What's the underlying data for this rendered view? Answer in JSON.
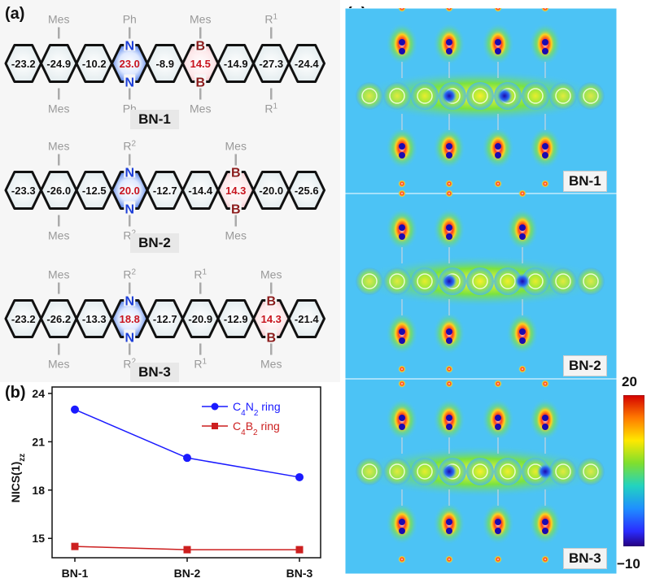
{
  "panel_a": {
    "letter": "(a)",
    "molecules": [
      {
        "name": "BN-1",
        "ring_values": [
          "-23.2",
          "-24.9",
          "-10.2",
          "23.0",
          "-8.9",
          "14.5",
          "-14.9",
          "-27.3",
          "-24.4"
        ],
        "n_top_label": "Ph",
        "n_bottom_label": "Ph",
        "b_top_label": "Mes",
        "b_bottom_label": "Mes",
        "sub1_top": "Mes",
        "sub1_bottom": "Mes",
        "sub2_top": "R",
        "sub2_top_sup": "1",
        "sub2_bottom": "R",
        "sub2_bottom_sup": "1",
        "atom_n": "N",
        "atom_b": "B"
      },
      {
        "name": "BN-2",
        "ring_values": [
          "-23.3",
          "-26.0",
          "-12.5",
          "20.0",
          "-12.7",
          "-14.4",
          "14.3",
          "-20.0",
          "-25.6"
        ],
        "n_top_label": "R",
        "n_top_sup": "2",
        "n_bottom_label": "R",
        "n_bottom_sup": "2",
        "b_top_label": "Mes",
        "b_bottom_label": "Mes",
        "sub1_top": "Mes",
        "sub1_bottom": "Mes",
        "atom_n": "N",
        "atom_b": "B"
      },
      {
        "name": "BN-3",
        "ring_values": [
          "-23.2",
          "-26.2",
          "-13.3",
          "18.8",
          "-12.7",
          "-20.9",
          "-12.9",
          "14.3",
          "-21.4"
        ],
        "n_top_label": "R",
        "n_top_sup": "2",
        "n_bottom_label": "R",
        "n_bottom_sup": "2",
        "b_top_label": "Mes",
        "b_bottom_label": "Mes",
        "sub1_top": "Mes",
        "sub1_bottom": "Mes",
        "sub2_top": "R",
        "sub2_top_sup": "1",
        "sub2_bottom": "R",
        "sub2_bottom_sup": "1",
        "atom_n": "N",
        "atom_b": "B"
      }
    ]
  },
  "panel_b": {
    "letter": "(b)"
  },
  "panel_c": {
    "letter": "(c)",
    "labels": [
      "BN-1",
      "BN-2",
      "BN-3"
    ],
    "colorbar_max": "20",
    "colorbar_min": "−10"
  },
  "chart_data": {
    "type": "line",
    "categories": [
      "BN-1",
      "BN-2",
      "BN-3"
    ],
    "ylabel": "NICS(1)",
    "ylabel_sub": "zz",
    "ylim": [
      13.8,
      24.4
    ],
    "yticks": [
      15,
      18,
      21,
      24
    ],
    "grid": false,
    "legend_position": "top-right",
    "series": [
      {
        "name": "C4N2 ring",
        "label_main": "C",
        "label_sub1": "4",
        "label_mid": "N",
        "label_sub2": "2",
        "label_tail": " ring",
        "marker": "circle",
        "color": "#1a1aff",
        "values": [
          23.0,
          20.0,
          18.8
        ]
      },
      {
        "name": "C4B2 ring",
        "label_main": "C",
        "label_sub1": "4",
        "label_mid": "B",
        "label_sub2": "2",
        "label_tail": " ring",
        "marker": "square",
        "color": "#cc1f1f",
        "values": [
          14.5,
          14.3,
          14.3
        ]
      }
    ]
  }
}
